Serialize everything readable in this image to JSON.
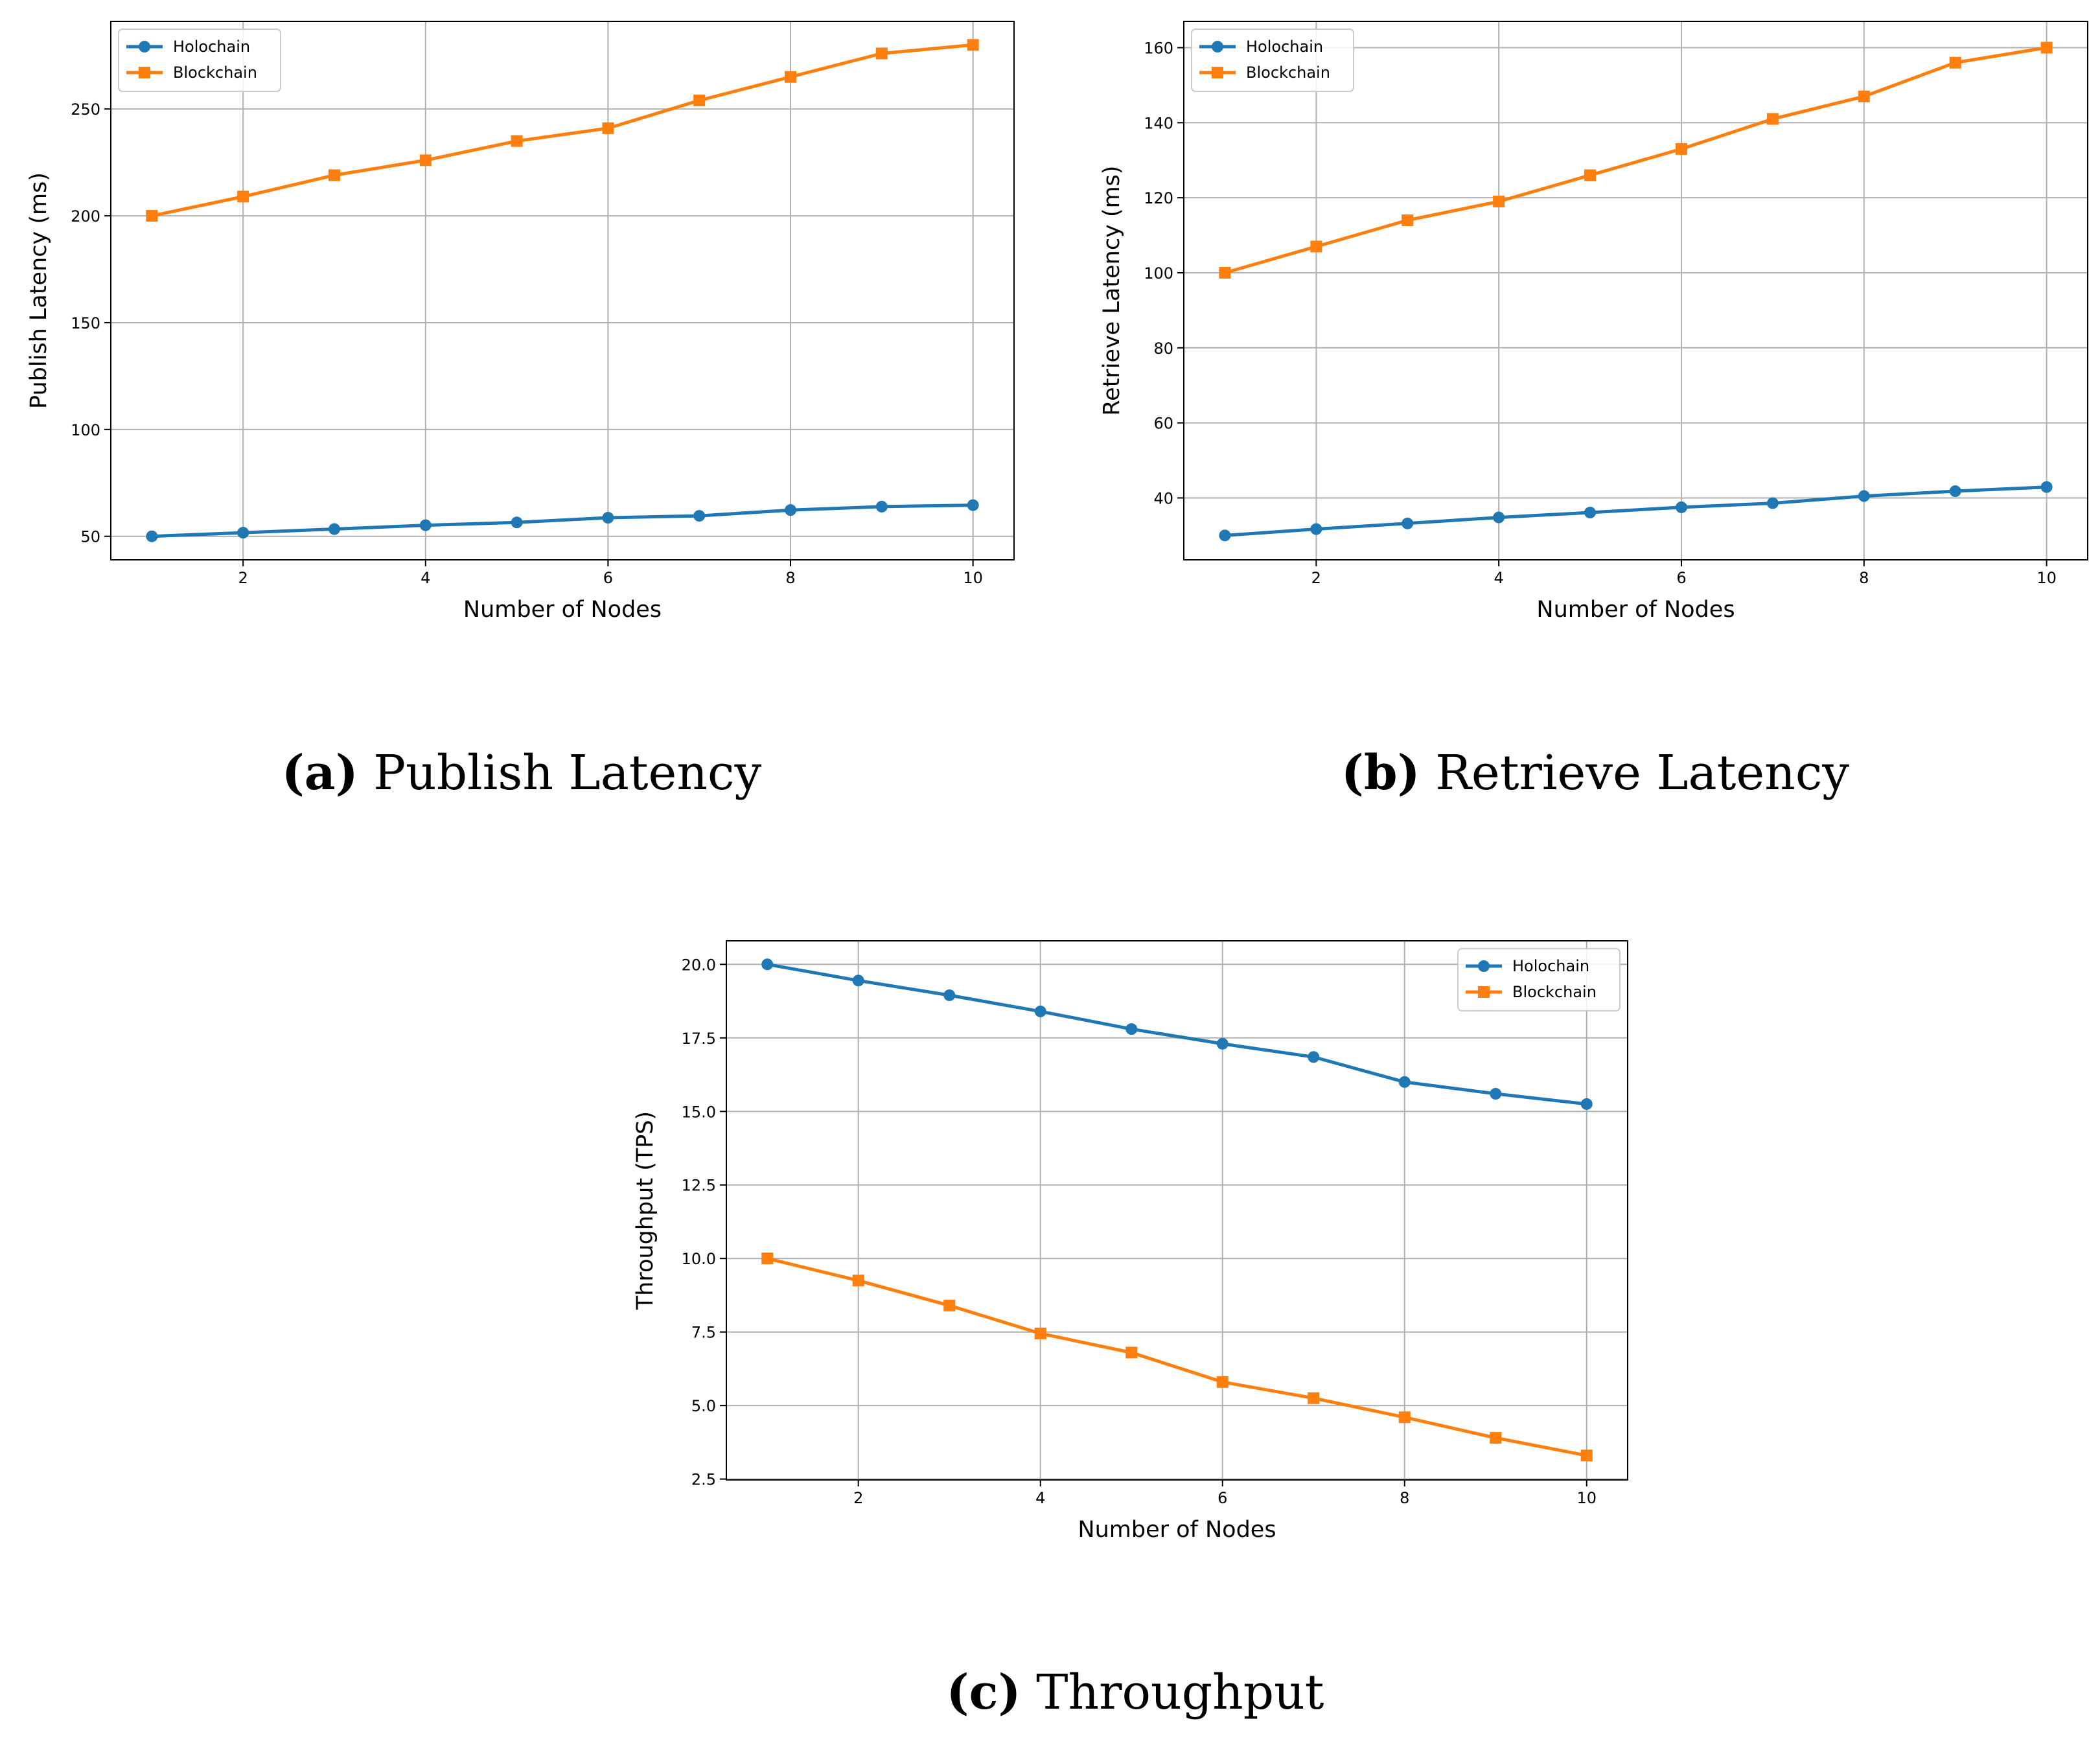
{
  "colors": {
    "holochain": "#1f77b4",
    "blockchain": "#ff7f0e",
    "grid": "#b0b0b0",
    "axes": "#000000"
  },
  "chart_data": [
    {
      "id": "a",
      "type": "line",
      "title": "",
      "xlabel": "Number of Nodes",
      "ylabel": "Publish Latency (ms)",
      "x": [
        1,
        2,
        3,
        4,
        5,
        6,
        7,
        8,
        9,
        10
      ],
      "xlim": [
        0.55,
        10.45
      ],
      "ylim": [
        39,
        291
      ],
      "xticks": [
        2,
        4,
        6,
        8,
        10
      ],
      "yticks": [
        50,
        100,
        150,
        200,
        250
      ],
      "ytick_labels": [
        "50",
        "100",
        "150",
        "200",
        "250"
      ],
      "grid": true,
      "legend_position": "top-left",
      "series": [
        {
          "name": "Holochain",
          "marker": "circle",
          "color": "#1f77b4",
          "values": [
            50,
            51.7,
            53.4,
            55.2,
            56.5,
            58.7,
            59.6,
            62.3,
            63.9,
            64.6
          ]
        },
        {
          "name": "Blockchain",
          "marker": "square",
          "color": "#ff7f0e",
          "values": [
            200,
            209,
            219,
            226,
            235,
            241,
            254,
            265,
            276,
            280
          ]
        }
      ],
      "caption_letter": "(a)",
      "caption_text": " Publish Latency"
    },
    {
      "id": "b",
      "type": "line",
      "title": "",
      "xlabel": "Number of Nodes",
      "ylabel": "Retrieve Latency (ms)",
      "x": [
        1,
        2,
        3,
        4,
        5,
        6,
        7,
        8,
        9,
        10
      ],
      "xlim": [
        0.55,
        10.45
      ],
      "ylim": [
        23.5,
        167
      ],
      "xticks": [
        2,
        4,
        6,
        8,
        10
      ],
      "yticks": [
        40,
        60,
        80,
        100,
        120,
        140,
        160
      ],
      "ytick_labels": [
        "40",
        "60",
        "80",
        "100",
        "120",
        "140",
        "160"
      ],
      "grid": true,
      "legend_position": "top-left",
      "series": [
        {
          "name": "Holochain",
          "marker": "circle",
          "color": "#1f77b4",
          "values": [
            30,
            31.7,
            33.2,
            34.8,
            36.1,
            37.5,
            38.6,
            40.5,
            41.8,
            42.9
          ]
        },
        {
          "name": "Blockchain",
          "marker": "square",
          "color": "#ff7f0e",
          "values": [
            100,
            107,
            114,
            119,
            126,
            133,
            141,
            147,
            156,
            160
          ]
        }
      ],
      "caption_letter": "(b)",
      "caption_text": " Retrieve Latency"
    },
    {
      "id": "c",
      "type": "line",
      "title": "",
      "xlabel": "Number of Nodes",
      "ylabel": "Throughput (TPS)",
      "x": [
        1,
        2,
        3,
        4,
        5,
        6,
        7,
        8,
        9,
        10
      ],
      "xlim": [
        0.55,
        10.45
      ],
      "ylim": [
        2.47,
        20.8
      ],
      "xticks": [
        2,
        4,
        6,
        8,
        10
      ],
      "yticks": [
        2.5,
        5.0,
        7.5,
        10.0,
        12.5,
        15.0,
        17.5,
        20.0
      ],
      "ytick_labels": [
        "2.5",
        "5.0",
        "7.5",
        "10.0",
        "12.5",
        "15.0",
        "17.5",
        "20.0"
      ],
      "grid": true,
      "legend_position": "top-right",
      "series": [
        {
          "name": "Holochain",
          "marker": "circle",
          "color": "#1f77b4",
          "values": [
            20.0,
            19.45,
            18.95,
            18.4,
            17.8,
            17.3,
            16.85,
            16.0,
            15.6,
            15.25
          ]
        },
        {
          "name": "Blockchain",
          "marker": "square",
          "color": "#ff7f0e",
          "values": [
            10.0,
            9.25,
            8.4,
            7.45,
            6.8,
            5.8,
            5.25,
            4.6,
            3.9,
            3.3
          ]
        }
      ],
      "caption_letter": "(c)",
      "caption_text": " Throughput"
    }
  ]
}
